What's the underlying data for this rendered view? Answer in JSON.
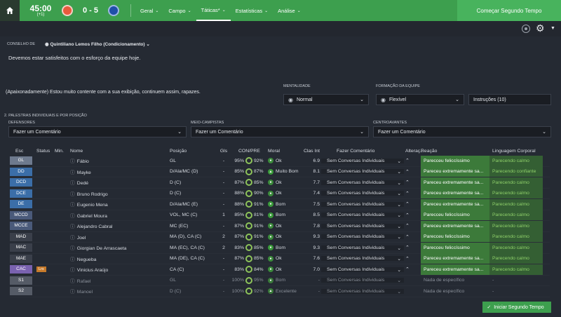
{
  "header": {
    "time": "45:00",
    "time_sub": "(+1)",
    "score": "0 - 5",
    "nav": [
      {
        "label": "Geral",
        "caret": "⌄"
      },
      {
        "label": "Campo",
        "caret": "⌄"
      },
      {
        "label": "Táticas*",
        "caret": "⌄"
      },
      {
        "label": "Estatísticas",
        "caret": "⌄"
      },
      {
        "label": "Análise",
        "caret": "⌄"
      }
    ],
    "start_button": "Começar Segundo Tempo",
    "home_color": "#2a3a2f",
    "bar_color": "#3d9f4e",
    "team1_color": "#e85a3c",
    "team2_color": "#1f4fa8"
  },
  "conselho": {
    "label": "CONSELHO DE",
    "advisor": "Quintiliano Lemos Filho (Condicionamento)",
    "message": "Devemos estar satisfeitos com o esforço da equipe hoje."
  },
  "talk": "(Apaixonadamente) Estou muito contente com a sua exibição, continuem assim, rapazes.",
  "mentalidade": {
    "label": "MENTALIDADE",
    "value": "Normal"
  },
  "formacao": {
    "label": "FORMAÇÃO DA EQUIPE",
    "value": "Flexível"
  },
  "instrucoes": "Instruções (10)",
  "section_title": "2. PALESTRAS INDIVIDUAIS E POR POSIÇÃO",
  "groups": [
    {
      "label": "DEFENSORES",
      "value": "Fazer um Comentário"
    },
    {
      "label": "MEIO-CAMPISTAS",
      "value": "Fazer um Comentário"
    },
    {
      "label": "CENTROAVANTES",
      "value": "Fazer um Comentário"
    }
  ],
  "columns": {
    "esc": "Esc",
    "status": "Status",
    "min": "Min.",
    "nome": "Nome",
    "posicao": "Posição",
    "gls": "Gls",
    "con": "CON/PRE",
    "moral": "Moral",
    "clas": "Clas Int",
    "fazer": "Fazer Comentário",
    "alter": "Alteraç...",
    "reacao": "Reação",
    "ling": "Linguagem Corporal"
  },
  "players": [
    {
      "esc": "GL",
      "esc_color": "#6e7a8e",
      "status": "",
      "nome": "Fábio",
      "posicao": "GL",
      "gls": "-",
      "con": "95%",
      "pre": "92%",
      "moral": "Ok",
      "moral_color": "#3b8a3b",
      "moral_sym": "●",
      "clas": "6.9",
      "fazer": "Sem Conversas Individuais",
      "reacao": "Parecceu feliccíssimo",
      "ling": "Parecendo calmo"
    },
    {
      "esc": "DD",
      "esc_color": "#3b6ea8",
      "status": "",
      "nome": "Mayke",
      "posicao": "D/Ala/MC (D)",
      "gls": "-",
      "con": "85%",
      "pre": "87%",
      "moral": "Muito Bom",
      "moral_color": "#3a9a3a",
      "moral_sym": "▲",
      "clas": "8.1",
      "fazer": "Sem Conversas Individuais",
      "reacao": "Pareceu extremamente sa...",
      "ling": "Parecendo confiante"
    },
    {
      "esc": "DCD",
      "esc_color": "#3b6ea8",
      "status": "",
      "nome": "Dedé",
      "posicao": "D (C)",
      "gls": "-",
      "con": "87%",
      "pre": "85%",
      "moral": "Ok",
      "moral_color": "#3b8a3b",
      "moral_sym": "●",
      "clas": "7.7",
      "fazer": "Sem Conversas Individuais",
      "reacao": "Pareceu extremamente sa...",
      "ling": "Parecendo calmo"
    },
    {
      "esc": "DCE",
      "esc_color": "#3b6ea8",
      "status": "",
      "nome": "Bruno Rodrigo",
      "posicao": "D (C)",
      "gls": "-",
      "con": "88%",
      "pre": "90%",
      "moral": "Ok",
      "moral_color": "#3b8a3b",
      "moral_sym": "●",
      "clas": "7.4",
      "fazer": "Sem Conversas Individuais",
      "reacao": "Pareceu extremamente sa...",
      "ling": "Parecendo calmo"
    },
    {
      "esc": "DE",
      "esc_color": "#3b6ea8",
      "status": "",
      "nome": "Eugenio Mena",
      "posicao": "D/Ala/MC (E)",
      "gls": "-",
      "con": "88%",
      "pre": "91%",
      "moral": "Bom",
      "moral_color": "#3a9a3a",
      "moral_sym": "●",
      "clas": "7.5",
      "fazer": "Sem Conversas Individuais",
      "reacao": "Pareceu extremamente sa...",
      "ling": "Parecendo calmo"
    },
    {
      "esc": "MCCD",
      "esc_color": "#4a5a7a",
      "status": "",
      "nome": "Gabriel Moura",
      "posicao": "VOL, MC (C)",
      "gls": "1",
      "con": "85%",
      "pre": "81%",
      "moral": "Bom",
      "moral_color": "#3a9a3a",
      "moral_sym": "●",
      "clas": "8.5",
      "fazer": "Sem Conversas Individuais",
      "reacao": "Parecceu feliccíssimo",
      "ling": "Parecendo calmo"
    },
    {
      "esc": "MCCE",
      "esc_color": "#4a5a7a",
      "status": "",
      "nome": "Alejandro Cabral",
      "posicao": "MC (EC)",
      "gls": "-",
      "con": "87%",
      "pre": "91%",
      "moral": "Ok",
      "moral_color": "#3b8a3b",
      "moral_sym": "●",
      "clas": "7.8",
      "fazer": "Sem Conversas Individuais",
      "reacao": "Pareceu extremamente sa...",
      "ling": "Parecendo calmo"
    },
    {
      "esc": "MAD",
      "esc_color": "#3a3f4a",
      "status": "",
      "nome": "Joel",
      "posicao": "MA (D), CA (C)",
      "gls": "2",
      "con": "87%",
      "pre": "91%",
      "moral": "Ok",
      "moral_color": "#3b8a3b",
      "moral_sym": "●",
      "clas": "9.3",
      "fazer": "Sem Conversas Individuais",
      "reacao": "Parecceu feliccíssimo",
      "ling": "Parecendo calmo"
    },
    {
      "esc": "MAC",
      "esc_color": "#3a3f4a",
      "status": "",
      "nome": "Giorgian De Arrascaeta",
      "posicao": "MA (EC), CA (C)",
      "gls": "2",
      "con": "83%",
      "pre": "85%",
      "moral": "Bom",
      "moral_color": "#3a9a3a",
      "moral_sym": "●",
      "clas": "9.3",
      "fazer": "Sem Conversas Individuais",
      "reacao": "Parecceu feliccíssimo",
      "ling": "Parecendo calmo"
    },
    {
      "esc": "MAE",
      "esc_color": "#3a3f4a",
      "status": "",
      "nome": "Negueba",
      "posicao": "MA (DE), CA (C)",
      "gls": "-",
      "con": "87%",
      "pre": "85%",
      "moral": "Ok",
      "moral_color": "#3b8a3b",
      "moral_sym": "●",
      "clas": "7.6",
      "fazer": "Sem Conversas Individuais",
      "reacao": "Pareceu extremamente sa...",
      "ling": "Parecendo calmo"
    },
    {
      "esc": "CAC",
      "esc_color": "#7a62b0",
      "status": "Lrs",
      "nome": "Vinicius Araújo",
      "posicao": "CA (C)",
      "gls": "-",
      "con": "83%",
      "pre": "84%",
      "moral": "Ok",
      "moral_color": "#3b8a3b",
      "moral_sym": "●",
      "clas": "7.0",
      "fazer": "Sem Conversas Individuais",
      "reacao": "Pareceu extremamente sa...",
      "ling": "Parecendo calmo"
    }
  ],
  "subs": [
    {
      "esc": "S1",
      "esc_color": "#555b66",
      "nome": "Rafael",
      "posicao": "GL",
      "gls": "-",
      "con": "100%",
      "pre": "95%",
      "moral": "Bom",
      "moral_color": "#3a7a3a",
      "moral_sym": "●",
      "clas": "-",
      "fazer": "Sem Conversas Individuais",
      "reacao": "Nada de específico",
      "ling": "-"
    },
    {
      "esc": "S2",
      "esc_color": "#555b66",
      "nome": "Manoel",
      "posicao": "D (C)",
      "gls": "-",
      "con": "100%",
      "pre": "92%",
      "moral": "Excelente",
      "moral_color": "#3a7a3a",
      "moral_sym": "▲",
      "clas": "-",
      "fazer": "Sem Conversas Individuais",
      "reacao": "Nada de específico",
      "ling": "-"
    }
  ],
  "bottom_button": "Iniciar Segundo Tempo"
}
